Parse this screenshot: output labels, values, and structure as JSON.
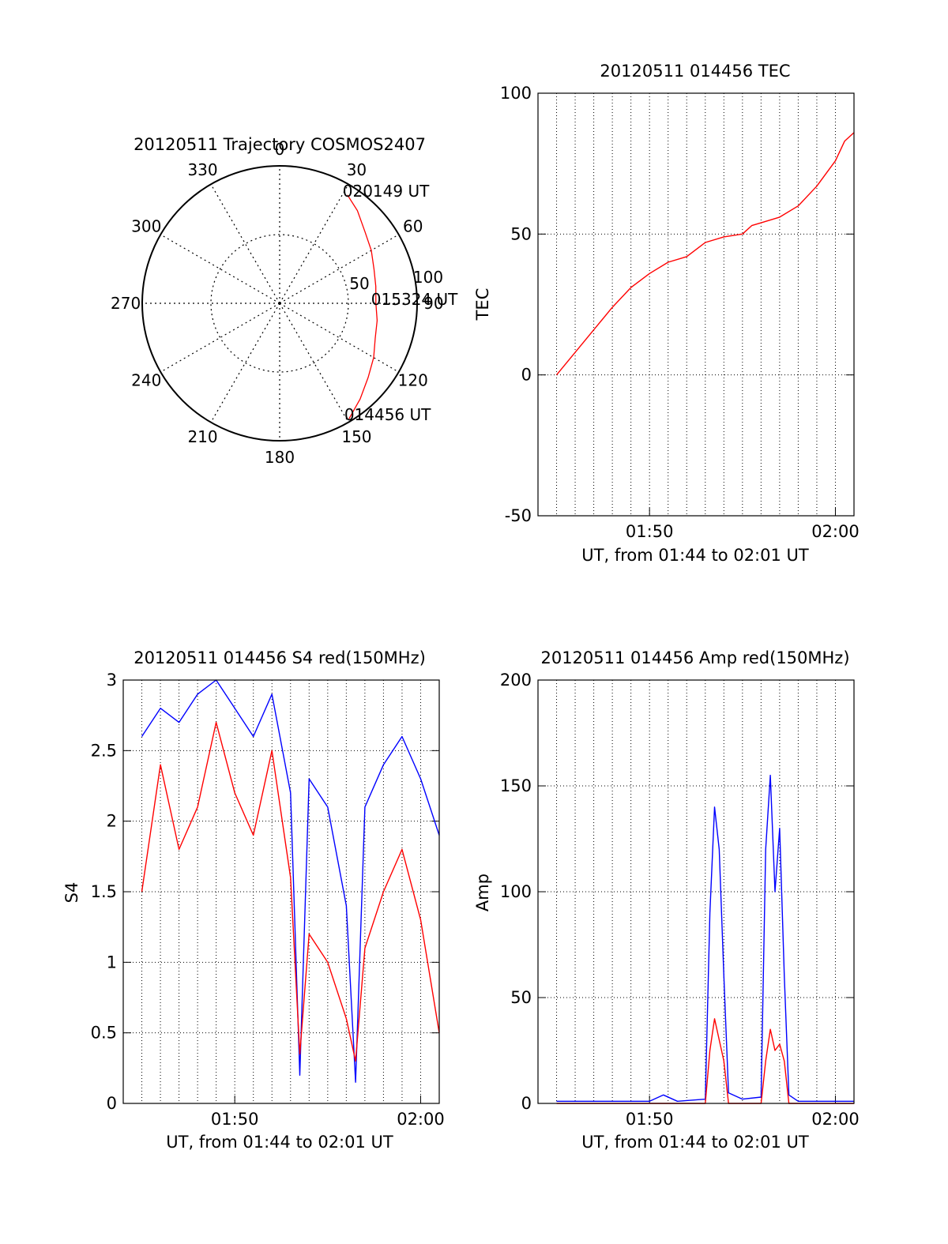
{
  "colors": {
    "red": "#ff0000",
    "blue": "#0000ff",
    "axis": "#000000",
    "grid": "#000000",
    "background": "#ffffff"
  },
  "chart_data": [
    {
      "id": "trajectory",
      "type": "polar",
      "title": "20120511 Trajectory COSMOS2407",
      "grid": true,
      "azimuth_ticks_deg": [
        0,
        30,
        60,
        90,
        120,
        150,
        180,
        210,
        240,
        270,
        300,
        330
      ],
      "azimuth_tick_labels": [
        "0",
        "30",
        "60",
        "90",
        "120",
        "150",
        "180",
        "210",
        "240",
        "270",
        "300",
        "330"
      ],
      "radial_rings": [
        50,
        100
      ],
      "radial_ring_labels": [
        "50",
        "100"
      ],
      "radial_max": 100,
      "trajectory": {
        "color": "#ff0000",
        "points": [
          {
            "az": 149,
            "r": 98
          },
          {
            "az": 140,
            "r": 91
          },
          {
            "az": 130,
            "r": 84
          },
          {
            "az": 120,
            "r": 79
          },
          {
            "az": 110,
            "r": 74
          },
          {
            "az": 100,
            "r": 72
          },
          {
            "az": 90,
            "r": 70
          },
          {
            "az": 80,
            "r": 71
          },
          {
            "az": 70,
            "r": 73
          },
          {
            "az": 60,
            "r": 77
          },
          {
            "az": 50,
            "r": 81
          },
          {
            "az": 40,
            "r": 88
          },
          {
            "az": 32,
            "r": 93
          }
        ],
        "annotations": [
          {
            "text": "020149 UT",
            "az": 32,
            "r": 93
          },
          {
            "text": "015324 UT",
            "az": 90,
            "r": 70
          },
          {
            "text": "014456 UT",
            "az": 149,
            "r": 98
          }
        ]
      }
    },
    {
      "id": "tec",
      "type": "line",
      "title": "20120511 014456 TEC",
      "xlabel": "UT, from 01:44 to 02:01 UT",
      "ylabel": "TEC",
      "xlim": [
        "01:44",
        "02:01"
      ],
      "ylim": [
        -50,
        100
      ],
      "yticks": [
        -50,
        0,
        50,
        100
      ],
      "xtick_labels": [
        "01:50",
        "02:00"
      ],
      "xticks": [
        "01:50",
        "02:00"
      ],
      "grid": true,
      "series": [
        {
          "color": "#ff0000",
          "x": [
            "01:45:00",
            "01:46:00",
            "01:47:00",
            "01:48:00",
            "01:49:00",
            "01:50:00",
            "01:51:00",
            "01:52:00",
            "01:53:00",
            "01:54:00",
            "01:55:00",
            "01:55:30",
            "01:56:00",
            "01:57:00",
            "01:58:00",
            "01:59:00",
            "02:00:00",
            "02:00:30",
            "02:01:00"
          ],
          "y": [
            0,
            8,
            16,
            24,
            31,
            36,
            40,
            42,
            47,
            49,
            50,
            53,
            54,
            56,
            60,
            67,
            76,
            83,
            86
          ]
        }
      ]
    },
    {
      "id": "s4",
      "type": "line",
      "title": "20120511 014456 S4 red(150MHz)",
      "xlabel": "UT, from 01:44 to 02:01 UT",
      "ylabel": "S4",
      "xlim": [
        "01:44",
        "02:01"
      ],
      "ylim": [
        0,
        3
      ],
      "yticks": [
        0,
        0.5,
        1,
        1.5,
        2,
        2.5,
        3
      ],
      "ytick_labels": [
        "0",
        "0.5",
        "1",
        "1.5",
        "2",
        "2.5",
        "3"
      ],
      "xtick_labels": [
        "01:50",
        "02:00"
      ],
      "xticks": [
        "01:50",
        "02:00"
      ],
      "grid": true,
      "series": [
        {
          "color": "#0000ff",
          "x": [
            "01:45:00",
            "01:46:00",
            "01:47:00",
            "01:48:00",
            "01:49:00",
            "01:50:00",
            "01:51:00",
            "01:52:00",
            "01:53:00",
            "01:53:30",
            "01:54:00",
            "01:55:00",
            "01:56:00",
            "01:56:30",
            "01:57:00",
            "01:58:00",
            "01:59:00",
            "02:00:00",
            "02:01:00"
          ],
          "y": [
            2.6,
            2.8,
            2.7,
            2.9,
            3.0,
            2.8,
            2.6,
            2.9,
            2.2,
            0.2,
            2.3,
            2.1,
            1.4,
            0.15,
            2.1,
            2.4,
            2.6,
            2.3,
            1.9
          ]
        },
        {
          "color": "#ff0000",
          "x": [
            "01:45:00",
            "01:46:00",
            "01:47:00",
            "01:48:00",
            "01:49:00",
            "01:50:00",
            "01:51:00",
            "01:52:00",
            "01:53:00",
            "01:53:30",
            "01:54:00",
            "01:55:00",
            "01:56:00",
            "01:56:30",
            "01:57:00",
            "01:58:00",
            "01:59:00",
            "02:00:00",
            "02:01:00"
          ],
          "y": [
            1.5,
            2.4,
            1.8,
            2.1,
            2.7,
            2.2,
            1.9,
            2.5,
            1.6,
            0.35,
            1.2,
            1.0,
            0.6,
            0.3,
            1.1,
            1.5,
            1.8,
            1.3,
            0.5
          ]
        }
      ]
    },
    {
      "id": "amp",
      "type": "line",
      "title": "20120511 014456 Amp red(150MHz)",
      "xlabel": "UT, from 01:44 to 02:01 UT",
      "ylabel": "Amp",
      "xlim": [
        "01:44",
        "02:01"
      ],
      "ylim": [
        0,
        200
      ],
      "yticks": [
        0,
        50,
        100,
        150,
        200
      ],
      "xtick_labels": [
        "01:50",
        "02:00"
      ],
      "xticks": [
        "01:50",
        "02:00"
      ],
      "grid": true,
      "series": [
        {
          "color": "#0000ff",
          "x": [
            "01:45:00",
            "01:48:00",
            "01:50:00",
            "01:50:45",
            "01:51:30",
            "01:53:00",
            "01:53:15",
            "01:53:30",
            "01:53:45",
            "01:54:00",
            "01:54:15",
            "01:55:00",
            "01:56:00",
            "01:56:15",
            "01:56:30",
            "01:56:45",
            "01:57:00",
            "01:57:15",
            "01:57:30",
            "01:58:00",
            "02:00:00",
            "02:01:00"
          ],
          "y": [
            1,
            1,
            1,
            4,
            1,
            2,
            90,
            140,
            120,
            60,
            5,
            2,
            3,
            120,
            155,
            100,
            130,
            60,
            4,
            1,
            1,
            1
          ]
        },
        {
          "color": "#ff0000",
          "x": [
            "01:45:00",
            "01:53:00",
            "01:53:15",
            "01:53:30",
            "01:53:45",
            "01:54:00",
            "01:54:15",
            "01:55:00",
            "01:56:00",
            "01:56:15",
            "01:56:30",
            "01:56:45",
            "01:57:00",
            "01:57:15",
            "01:57:30",
            "02:01:00"
          ],
          "y": [
            0,
            0,
            25,
            40,
            30,
            20,
            0,
            0,
            0,
            20,
            35,
            25,
            28,
            20,
            0,
            0
          ]
        }
      ]
    }
  ]
}
